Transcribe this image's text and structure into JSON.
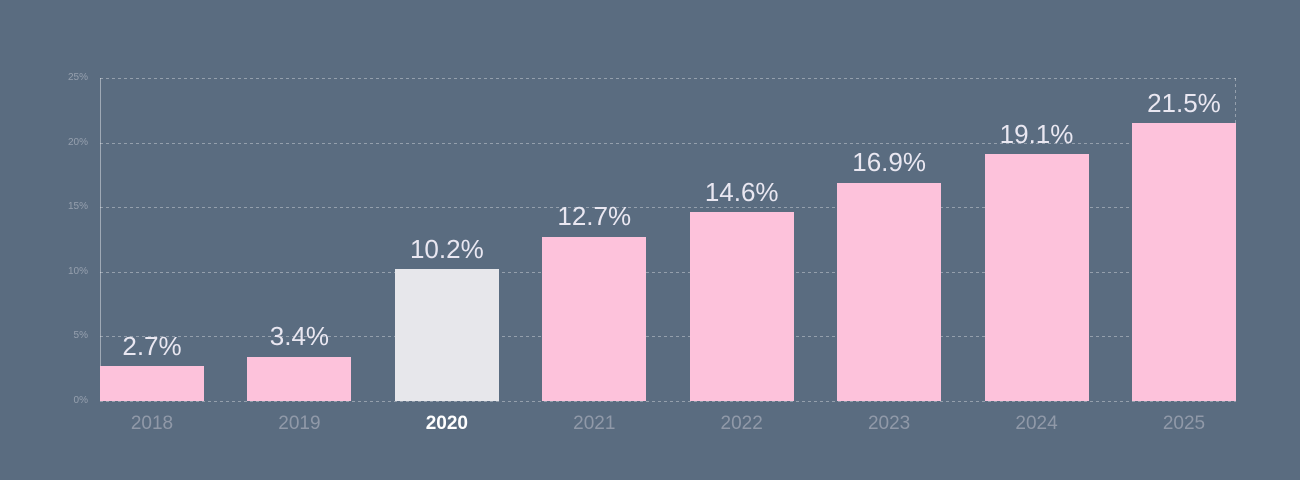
{
  "chart_data": {
    "type": "bar",
    "title": "",
    "xlabel": "",
    "ylabel": "",
    "categories": [
      "2018",
      "2019",
      "2020",
      "2021",
      "2022",
      "2023",
      "2024",
      "2025"
    ],
    "values": [
      2.7,
      3.4,
      10.2,
      12.7,
      14.6,
      16.9,
      19.1,
      21.5
    ],
    "value_labels": [
      "2.7%",
      "3.4%",
      "10.2%",
      "12.7%",
      "14.6%",
      "16.9%",
      "19.1%",
      "21.5%"
    ],
    "ylim": [
      0,
      25
    ],
    "yticks": [
      0,
      5,
      10,
      15,
      20,
      25
    ],
    "ytick_labels": [
      "0%",
      "5%",
      "10%",
      "15%",
      "20%",
      "25%"
    ],
    "grid": "horizontal-dashed",
    "legend": "none",
    "highlight_index": 2,
    "highlight_category": "2020",
    "colors": {
      "background": "#5a6c80",
      "bar": "#fdc2db",
      "bar_highlight": "#e7e7eb",
      "value_label": "#e9e7f1",
      "x_axis_label": "#9099a8",
      "x_axis_label_highlight": "#ffffff",
      "y_tick_label": "#96a0ae",
      "gridline": "rgba(255,255,255,0.35)",
      "axis_line": "rgba(255,255,255,0.42)"
    }
  }
}
